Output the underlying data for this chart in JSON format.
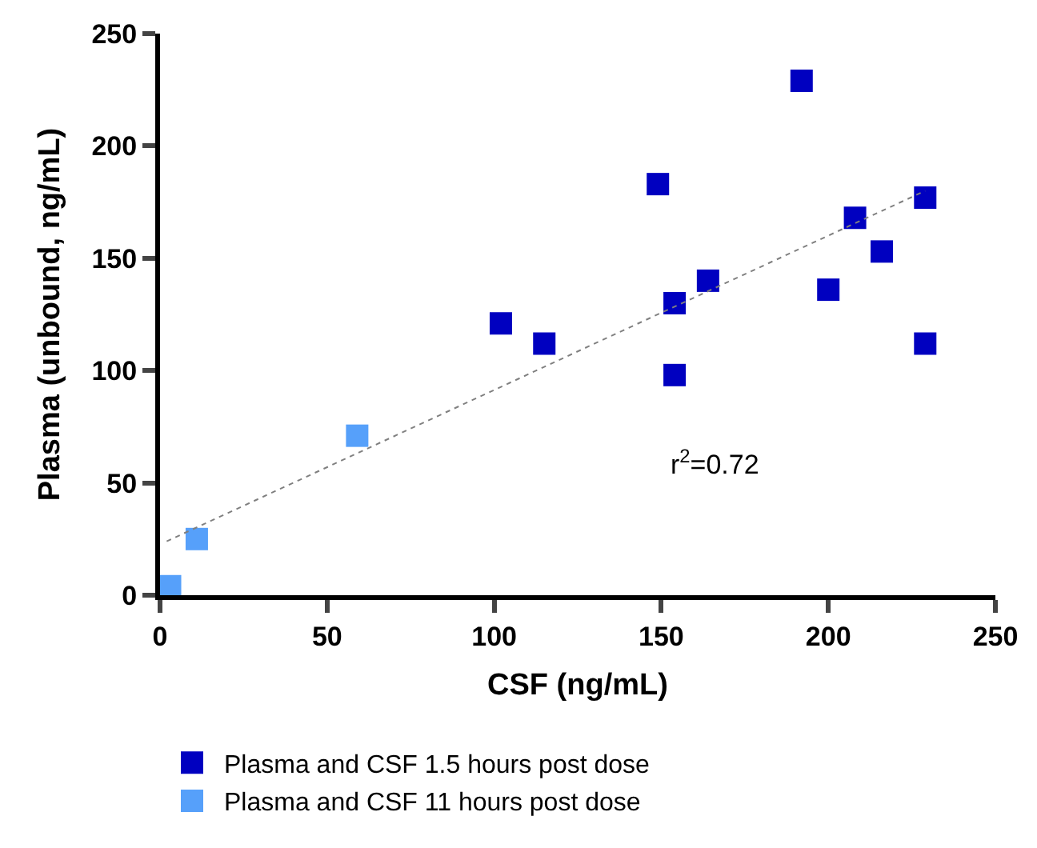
{
  "chart_data": {
    "type": "scatter",
    "xlabel": "CSF (ng/mL)",
    "ylabel": "Plasma (unbound, ng/mL)",
    "xlim": [
      0,
      250
    ],
    "xticks": [
      0,
      50,
      100,
      150,
      200,
      250
    ],
    "ylim": [
      0,
      250
    ],
    "yticks": [
      0,
      50,
      100,
      150,
      200,
      250
    ],
    "legend": "bottom",
    "marker": "square",
    "annotations": [
      "r$^{2}$=0.72"
    ],
    "series": [
      {
        "name": "Plasma and CSF 1.5 hours post dose",
        "color": "#0000c0",
        "x": [
          102,
          115,
          149,
          154,
          154,
          164,
          192,
          200,
          208,
          216,
          229,
          229
        ],
        "values": [
          121,
          112,
          183,
          130,
          98,
          140,
          229,
          136,
          168,
          153,
          177,
          112
        ]
      },
      {
        "name": "Plasma and CSF 11 hours post dose",
        "color": "#56a0fa",
        "x": [
          3,
          11,
          59
        ],
        "values": [
          4,
          25,
          71
        ]
      },
      {
        "type": "line",
        "color": "#808080",
        "line_style": "dotted",
        "marker": "none",
        "x": [
          2,
          229
        ],
        "values": [
          24,
          180
        ]
      }
    ]
  }
}
